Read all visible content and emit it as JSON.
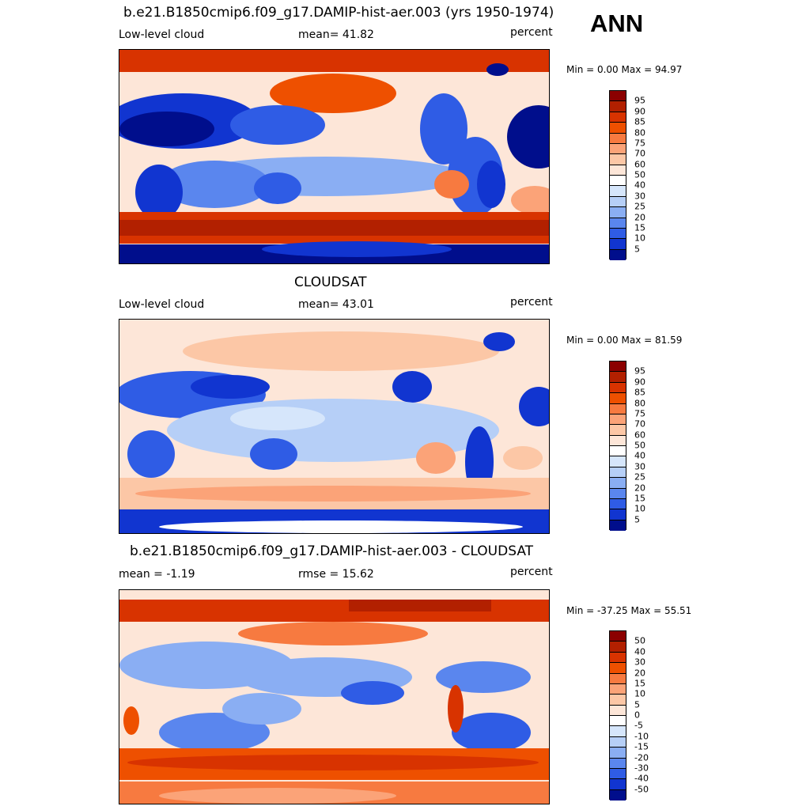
{
  "season": "ANN",
  "panels": [
    {
      "title": "b.e21.B1850cmip6.f09_g17.DAMIP-hist-aer.003 (yrs 1950-1974)",
      "left_label": "Low-level cloud",
      "mid_label": "mean=  41.82",
      "units": "percent",
      "minmax": "Min =    0.00 Max =  94.97"
    },
    {
      "title": "CLOUDSAT",
      "left_label": "Low-level cloud",
      "mid_label": "mean=  43.01",
      "units": "percent",
      "minmax": "Min =    0.00 Max =  81.59"
    },
    {
      "title": "b.e21.B1850cmip6.f09_g17.DAMIP-hist-aer.003 - CLOUDSAT",
      "left_label": "mean =  -1.19",
      "mid_label": "rmse =  15.62",
      "units": "percent",
      "minmax": "Min = -37.25 Max =  55.51"
    }
  ],
  "colorbars": {
    "abs": {
      "labels": [
        "95",
        "90",
        "85",
        "80",
        "75",
        "70",
        "60",
        "50",
        "40",
        "30",
        "25",
        "20",
        "15",
        "10",
        "5"
      ],
      "colors": [
        "#8b0000",
        "#b22000",
        "#d83300",
        "#ee5000",
        "#f77a40",
        "#fba378",
        "#fcc7a6",
        "#fde6d8",
        "#ffffff",
        "#d6e6fb",
        "#b6cff7",
        "#8aaef3",
        "#5a86ee",
        "#2f5ce5",
        "#1135d0",
        "#000e8c"
      ]
    },
    "diff": {
      "labels": [
        "50",
        "40",
        "30",
        "20",
        "15",
        "10",
        "5",
        "0",
        "-5",
        "-10",
        "-15",
        "-20",
        "-30",
        "-40",
        "-50"
      ],
      "colors": [
        "#8b0000",
        "#b22000",
        "#d83300",
        "#ee5000",
        "#f77a40",
        "#fba378",
        "#fcc7a6",
        "#fde6d8",
        "#ffffff",
        "#d6e6fb",
        "#b6cff7",
        "#8aaef3",
        "#5a86ee",
        "#2f5ce5",
        "#1135d0",
        "#000e8c"
      ]
    }
  },
  "chart_data": [
    {
      "type": "heatmap",
      "title": "b.e21.B1850cmip6.f09_g17.DAMIP-hist-aer.003 (yrs 1950-1974)",
      "variable": "Low-level cloud",
      "units": "percent",
      "mean": 41.82,
      "min": 0.0,
      "max": 94.97,
      "contour_levels": [
        5,
        10,
        15,
        20,
        25,
        30,
        40,
        50,
        60,
        70,
        75,
        80,
        85,
        90,
        95
      ]
    },
    {
      "type": "heatmap",
      "title": "CLOUDSAT",
      "variable": "Low-level cloud",
      "units": "percent",
      "mean": 43.01,
      "min": 0.0,
      "max": 81.59,
      "contour_levels": [
        5,
        10,
        15,
        20,
        25,
        30,
        40,
        50,
        60,
        70,
        75,
        80,
        85,
        90,
        95
      ]
    },
    {
      "type": "heatmap",
      "title": "b.e21.B1850cmip6.f09_g17.DAMIP-hist-aer.003 - CLOUDSAT",
      "units": "percent",
      "mean": -1.19,
      "rmse": 15.62,
      "min": -37.25,
      "max": 55.51,
      "contour_levels": [
        -50,
        -40,
        -30,
        -20,
        -15,
        -10,
        -5,
        0,
        5,
        10,
        15,
        20,
        30,
        40,
        50
      ]
    }
  ]
}
